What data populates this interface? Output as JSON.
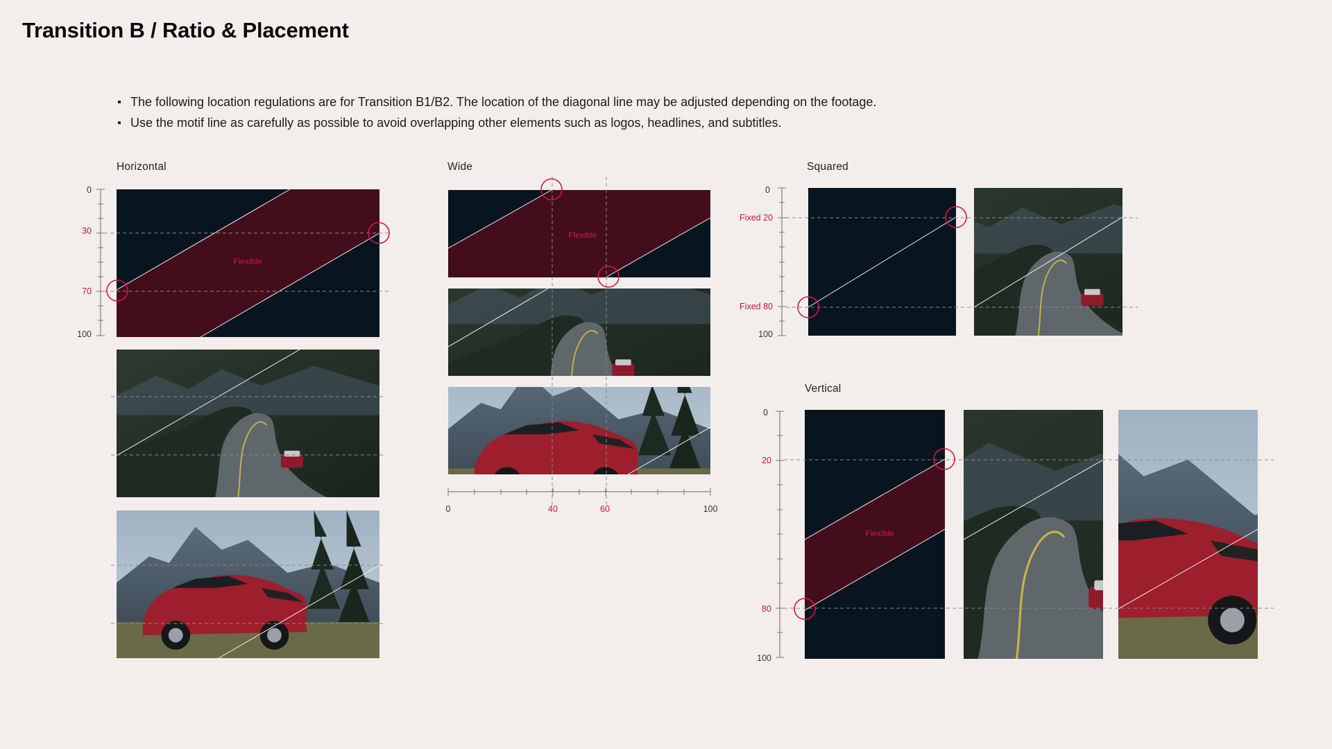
{
  "page": {
    "title": "Transition B / Ratio & Placement"
  },
  "notes": [
    "The following location regulations are for Transition B1/B2. The location of the diagonal line may be adjusted depending on the footage.",
    "Use the motif line as carefully as possible to avoid overlapping other elements such as logos, headlines, and subtitles."
  ],
  "sections": {
    "horizontal": {
      "label": "Horizontal",
      "ruler_labels": [
        "0",
        "30",
        "70",
        "100"
      ],
      "flexible_label": "Flexible",
      "guide_points": [
        30,
        70
      ]
    },
    "wide": {
      "label": "Wide",
      "ruler_labels": [
        "0",
        "40",
        "60",
        "100"
      ],
      "flexible_label": "Flexible",
      "guide_points": [
        40,
        60
      ]
    },
    "squared": {
      "label": "Squared",
      "ruler_labels": [
        "0",
        "Fixed  20",
        "Fixed  80",
        "100"
      ],
      "guide_points": [
        20,
        80
      ]
    },
    "vertical": {
      "label": "Vertical",
      "ruler_labels": [
        "0",
        "20",
        "80",
        "100"
      ],
      "flexible_label": "Flexible",
      "guide_points": [
        20,
        80
      ]
    }
  },
  "colors": {
    "background": "#f3eeec",
    "dark_navy": "#081520",
    "maroon": "#430d1c",
    "accent_red": "#d0174a",
    "guide_gray": "#8a8a8a"
  }
}
